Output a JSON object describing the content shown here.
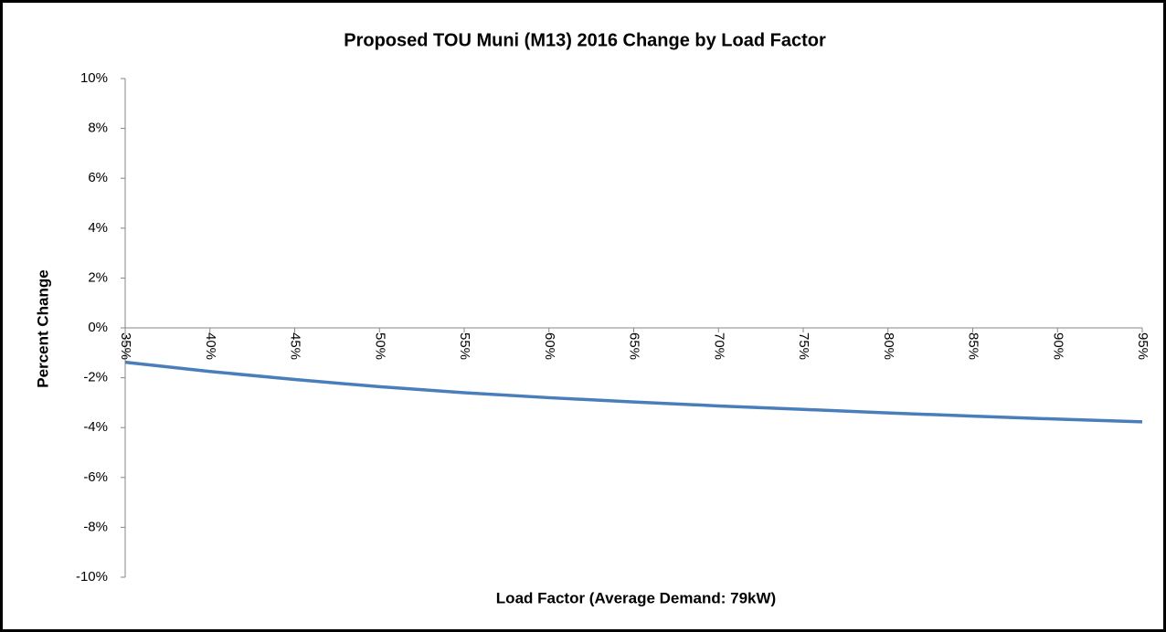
{
  "chart_data": {
    "type": "line",
    "title": "Proposed TOU Muni (M13) 2016 Change by Load Factor",
    "x_label": "Load Factor (Average Demand: 79kW)",
    "y_label": "Percent Change",
    "x": [
      35,
      40,
      45,
      50,
      55,
      60,
      65,
      70,
      75,
      80,
      85,
      90,
      95
    ],
    "series": [
      {
        "color": "#4a7ebb",
        "values": [
          -1.38,
          -1.75,
          -2.07,
          -2.36,
          -2.6,
          -2.8,
          -2.97,
          -3.13,
          -3.27,
          -3.41,
          -3.54,
          -3.66,
          -3.77
        ]
      }
    ],
    "xlim": [
      35,
      95
    ],
    "xticks": [
      {
        "value": 35,
        "label": "35%"
      },
      {
        "value": 40,
        "label": "40%"
      },
      {
        "value": 45,
        "label": "45%"
      },
      {
        "value": 50,
        "label": "50%"
      },
      {
        "value": 55,
        "label": "55%"
      },
      {
        "value": 60,
        "label": "60%"
      },
      {
        "value": 65,
        "label": "65%"
      },
      {
        "value": 70,
        "label": "70%"
      },
      {
        "value": 75,
        "label": "75%"
      },
      {
        "value": 80,
        "label": "80%"
      },
      {
        "value": 85,
        "label": "85%"
      },
      {
        "value": 90,
        "label": "90%"
      },
      {
        "value": 95,
        "label": "95%"
      }
    ],
    "ylim": [
      -10,
      10
    ],
    "yticks": [
      {
        "value": -10,
        "label": "-10%"
      },
      {
        "value": -8,
        "label": "-8%"
      },
      {
        "value": -6,
        "label": "-6%"
      },
      {
        "value": -4,
        "label": "-4%"
      },
      {
        "value": -2,
        "label": "-2%"
      },
      {
        "value": 0,
        "label": "0%"
      },
      {
        "value": 2,
        "label": "2%"
      },
      {
        "value": 4,
        "label": "4%"
      },
      {
        "value": 6,
        "label": "6%"
      },
      {
        "value": 8,
        "label": "8%"
      },
      {
        "value": 10,
        "label": "10%"
      }
    ],
    "grid": false
  }
}
